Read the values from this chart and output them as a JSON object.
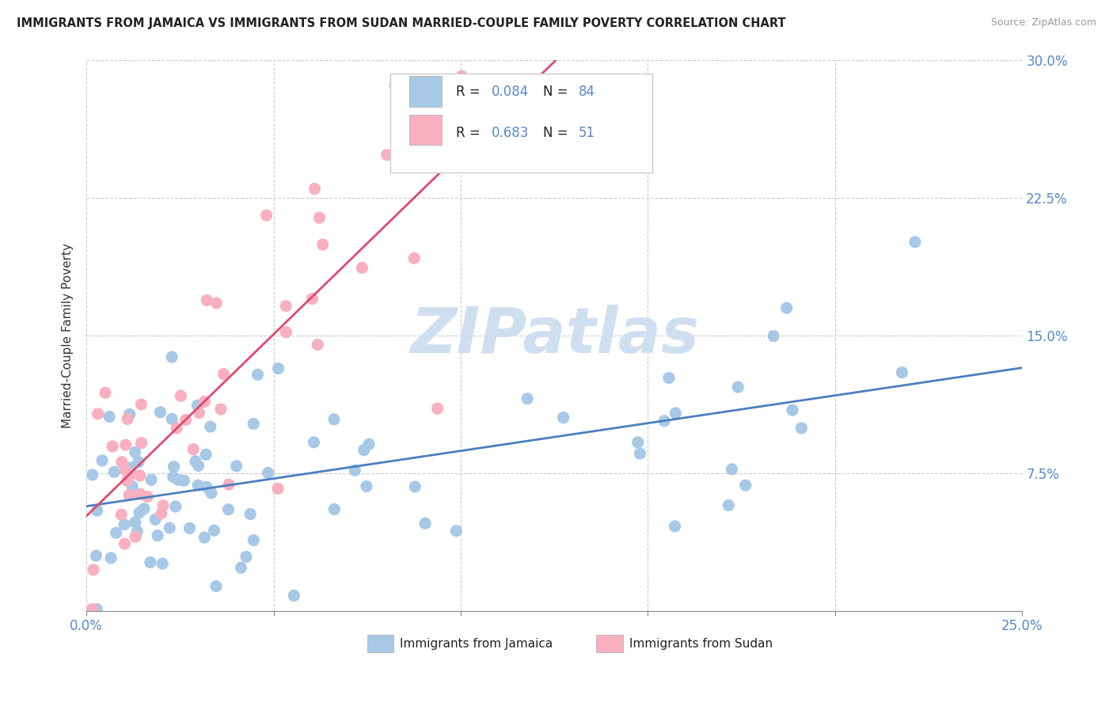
{
  "title": "IMMIGRANTS FROM JAMAICA VS IMMIGRANTS FROM SUDAN MARRIED-COUPLE FAMILY POVERTY CORRELATION CHART",
  "source": "Source: ZipAtlas.com",
  "ylabel": "Married-Couple Family Poverty",
  "xlim": [
    0.0,
    0.25
  ],
  "ylim": [
    0.0,
    0.3
  ],
  "jamaica_R": 0.084,
  "jamaica_N": 84,
  "sudan_R": 0.683,
  "sudan_N": 51,
  "jamaica_color": "#a8c8e8",
  "sudan_color": "#f8b0c0",
  "jamaica_line_color": "#4a7fc0",
  "sudan_line_color": "#e04870",
  "watermark_color": "#d0dff0",
  "legend_jamaica": "Immigrants from Jamaica",
  "legend_sudan": "Immigrants from Sudan",
  "title_color": "#222222",
  "axis_label_color": "#5588cc",
  "grid_color": "#cccccc",
  "background_color": "#ffffff",
  "right_ytick_labels": [
    "7.5%",
    "15.0%",
    "22.5%",
    "30.0%"
  ],
  "right_ytick_vals": [
    0.075,
    0.15,
    0.225,
    0.3
  ]
}
